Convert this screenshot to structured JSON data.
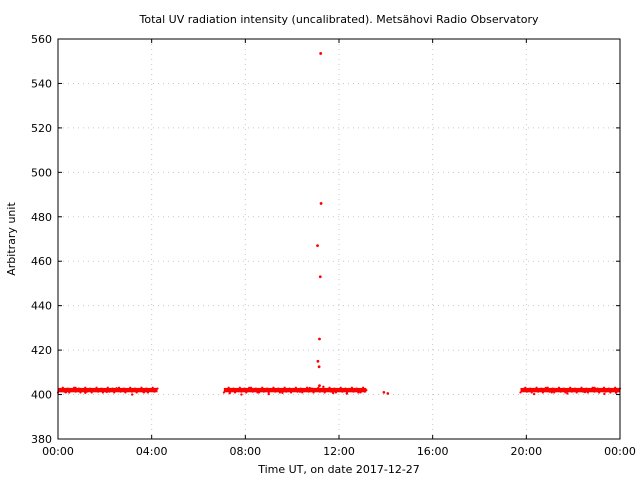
{
  "chart_data": {
    "type": "scatter",
    "title": "Total UV radiation intensity (uncalibrated). Metsähovi Radio Observatory",
    "xlabel": "Time UT, on date 2017-12-27",
    "ylabel": "Arbitrary unit",
    "xlim": [
      "00:00",
      "24:00"
    ],
    "ylim": [
      380,
      560
    ],
    "x_tick_labels": [
      "00:00",
      "04:00",
      "08:00",
      "12:00",
      "16:00",
      "20:00",
      "00:00"
    ],
    "y_ticks": [
      380,
      400,
      420,
      440,
      460,
      480,
      500,
      520,
      540,
      560
    ],
    "grid": true,
    "marker_color": "#ff0000",
    "series": [
      {
        "baseline_value": 402,
        "segments": [
          [
            "00:00",
            "04:15"
          ],
          [
            "07:05",
            "13:10"
          ],
          [
            "19:45",
            "24:00"
          ]
        ],
        "isolated_points": [
          [
            "13:55",
            401
          ],
          [
            "14:05",
            400.5
          ]
        ],
        "scattered_low_points": [
          [
            "00:20",
            401
          ],
          [
            "01:10",
            400.8
          ],
          [
            "02:05",
            401.2
          ],
          [
            "03:10",
            400
          ],
          [
            "03:40",
            401
          ],
          [
            "07:20",
            400.6
          ],
          [
            "07:50",
            400
          ],
          [
            "08:35",
            401
          ],
          [
            "09:00",
            400.2
          ],
          [
            "09:35",
            400.8
          ],
          [
            "10:20",
            401.3
          ],
          [
            "11:45",
            400.7
          ],
          [
            "12:20",
            400.4
          ],
          [
            "12:55",
            401
          ],
          [
            "20:20",
            400.2
          ],
          [
            "21:05",
            401
          ],
          [
            "21:45",
            400.5
          ],
          [
            "22:30",
            401.1
          ],
          [
            "23:20",
            400.3
          ],
          [
            "23:50",
            400.8
          ]
        ],
        "scattered_high_points": [
          [
            "00:45",
            403
          ],
          [
            "02:30",
            402.8
          ],
          [
            "08:10",
            403
          ],
          [
            "10:45",
            402.9
          ],
          [
            "11:20",
            403.5
          ],
          [
            "20:50",
            403
          ],
          [
            "22:55",
            403
          ]
        ],
        "spike_points": [
          [
            "11:13",
            553.5
          ],
          [
            "11:14",
            486
          ],
          [
            "11:05",
            467
          ],
          [
            "11:12",
            453
          ],
          [
            "11:10",
            425
          ],
          [
            "11:06",
            415
          ],
          [
            "11:09",
            412.5
          ],
          [
            "11:10",
            404
          ]
        ]
      }
    ]
  }
}
